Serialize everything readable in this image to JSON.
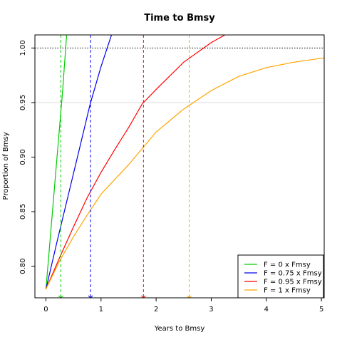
{
  "chart_data": {
    "type": "line",
    "title": "Time to Bmsy",
    "xlabel": "Years to Bmsy",
    "ylabel": "Proportion of Bmsy",
    "xlim": [
      -0.2,
      5.05
    ],
    "ylim": [
      0.771,
      1.012
    ],
    "x_ticks": [
      0,
      1,
      2,
      3,
      4,
      5
    ],
    "y_ticks": [
      0.8,
      0.85,
      0.9,
      0.95,
      1.0
    ],
    "y_tick_labels": [
      "0.80",
      "0.85",
      "0.90",
      "0.95",
      "1.00"
    ],
    "start_value": 0.779,
    "reference_lines": [
      {
        "y": 1.0,
        "style": "dotted",
        "color": "#000000"
      },
      {
        "y": 0.95,
        "style": "solid",
        "color": "#dddddd"
      }
    ],
    "legend_position": "bottom-right",
    "series": [
      {
        "name": "F = 0 x Fmsy",
        "color": "#00cc00",
        "x": [
          0,
          0.1,
          0.2,
          0.3,
          0.375
        ],
        "y": [
          0.779,
          0.839,
          0.899,
          0.959,
          1.012
        ],
        "time_to_095": 0.27
      },
      {
        "name": "F = 0.75 x Fmsy",
        "color": "#0000ee",
        "x": [
          0,
          0.2,
          0.4,
          0.6,
          0.8,
          1.0,
          1.19
        ],
        "y": [
          0.779,
          0.822,
          0.864,
          0.906,
          0.948,
          0.983,
          1.012
        ],
        "time_to_095": 0.81
      },
      {
        "name": "F = 0.95 x Fmsy",
        "color": "#ff0000",
        "x": [
          0,
          0.25,
          0.5,
          0.75,
          1.0,
          1.25,
          1.5,
          1.75,
          2.0,
          2.5,
          3.0,
          3.25
        ],
        "y": [
          0.779,
          0.808,
          0.836,
          0.863,
          0.886,
          0.907,
          0.927,
          0.949,
          0.962,
          0.987,
          1.005,
          1.012
        ],
        "time_to_095": 1.77
      },
      {
        "name": "F = 1 x Fmsy",
        "color": "#ffa500",
        "x": [
          0,
          0.25,
          0.5,
          0.75,
          1.0,
          1.5,
          2.0,
          2.5,
          3.0,
          3.5,
          4.0,
          4.5,
          5.05
        ],
        "y": [
          0.779,
          0.805,
          0.827,
          0.847,
          0.866,
          0.893,
          0.923,
          0.944,
          0.961,
          0.974,
          0.982,
          0.987,
          0.991
        ],
        "time_to_095": 2.6
      }
    ]
  }
}
